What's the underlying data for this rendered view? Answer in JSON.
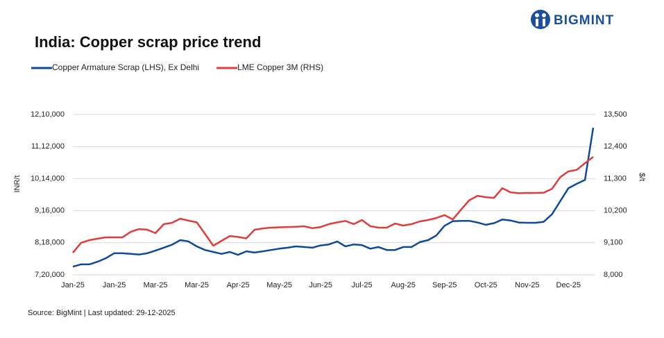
{
  "logo": "BIGMINT",
  "chart_data": {
    "type": "line",
    "title": "India: Copper scrap price trend",
    "ylabel": "INR/t",
    "y2label": "$/t",
    "source": "Source: BigMint | Last updated: 29-12-2025",
    "categories": [
      "Jan-25",
      null,
      null,
      null,
      null,
      "Jan-25",
      null,
      null,
      null,
      null,
      "Mar-25",
      null,
      null,
      null,
      null,
      "Mar-25",
      null,
      null,
      null,
      null,
      "Apr-25",
      null,
      null,
      null,
      null,
      "May-25",
      null,
      null,
      null,
      null,
      "Jun-25",
      null,
      null,
      null,
      null,
      "Jul-25",
      null,
      null,
      null,
      null,
      "Aug-25",
      null,
      null,
      null,
      null,
      "Sep-25",
      null,
      null,
      null,
      null,
      "Oct-25",
      null,
      null,
      null,
      null,
      "Nov-25",
      null,
      null,
      null,
      null,
      "Dec-25",
      null,
      null,
      null
    ],
    "series": [
      {
        "name": "Copper Armature Scrap (LHS), Ex Delhi",
        "color": "#0e4a9c",
        "axis": "y",
        "values": [
          745000,
          752000,
          752000,
          760000,
          771000,
          786000,
          786000,
          784000,
          782000,
          786000,
          794000,
          803000,
          812000,
          826000,
          822000,
          807000,
          796000,
          790000,
          784000,
          790000,
          781000,
          792000,
          788000,
          792000,
          796000,
          800000,
          803000,
          807000,
          805000,
          803000,
          810000,
          813000,
          822000,
          807000,
          813000,
          811000,
          800000,
          805000,
          796000,
          796000,
          805000,
          805000,
          820000,
          826000,
          840000,
          870000,
          884000,
          885000,
          885000,
          880000,
          873000,
          878000,
          889000,
          886000,
          880000,
          879000,
          879000,
          882000,
          905000,
          945000,
          985000,
          998000,
          1010000,
          1170000
        ]
      },
      {
        "name": "LME Copper 3M (RHS)",
        "color": "#e03c3c",
        "axis": "y2",
        "values": [
          8760,
          9100,
          9190,
          9240,
          9285,
          9285,
          9285,
          9475,
          9570,
          9550,
          9430,
          9737,
          9785,
          9927,
          9860,
          9800,
          9404,
          9000,
          9166,
          9330,
          9300,
          9250,
          9547,
          9594,
          9620,
          9630,
          9640,
          9650,
          9666,
          9600,
          9640,
          9740,
          9800,
          9850,
          9740,
          9880,
          9670,
          9620,
          9620,
          9760,
          9690,
          9740,
          9830,
          9880,
          9950,
          10050,
          9900,
          10240,
          10560,
          10713,
          10665,
          10640,
          10975,
          10830,
          10800,
          10810,
          10810,
          10820,
          10950,
          11350,
          11550,
          11600,
          11830,
          12047
        ]
      }
    ],
    "ylim": [
      720000,
      1210000
    ],
    "yticks": [
      {
        "value": 720000,
        "label": "7,20,000"
      },
      {
        "value": 818000,
        "label": "8,18,000"
      },
      {
        "value": 916000,
        "label": "9,16,000"
      },
      {
        "value": 1014000,
        "label": "10,14,000"
      },
      {
        "value": 1112000,
        "label": "11,12,000"
      },
      {
        "value": 1210000,
        "label": "12,10,000"
      }
    ],
    "y2lim": [
      8000,
      13500
    ],
    "y2ticks": [
      {
        "value": 8000,
        "label": "8,000"
      },
      {
        "value": 9100,
        "label": "9,100"
      },
      {
        "value": 10200,
        "label": "10,200"
      },
      {
        "value": 11300,
        "label": "11,300"
      },
      {
        "value": 12400,
        "label": "12,400"
      },
      {
        "value": 13500,
        "label": "13,500"
      }
    ],
    "grid": true,
    "legend": "top-left"
  }
}
